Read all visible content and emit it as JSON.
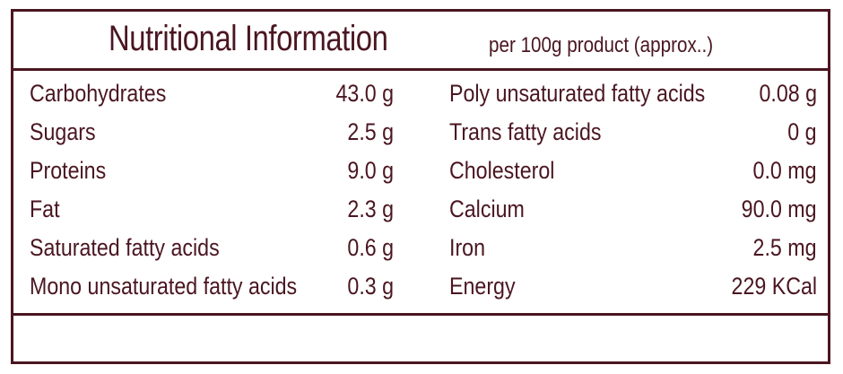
{
  "header": {
    "title": "Nutritional Information",
    "subtitle": "per 100g product (approx..)"
  },
  "rows": [
    {
      "left_name": "Carbohydrates",
      "left_value": "43.0 g",
      "right_name": "Poly unsaturated fatty acids",
      "right_value": "0.08 g"
    },
    {
      "left_name": "Sugars",
      "left_value": "2.5 g",
      "right_name": "Trans fatty acids",
      "right_value": "0 g"
    },
    {
      "left_name": "Proteins",
      "left_value": "9.0 g",
      "right_name": "Cholesterol",
      "right_value": "0.0 mg"
    },
    {
      "left_name": "Fat",
      "left_value": "2.3 g",
      "right_name": "Calcium",
      "right_value": "90.0 mg"
    },
    {
      "left_name": "Saturated fatty acids",
      "left_value": "0.6 g",
      "right_name": "Iron",
      "right_value": "2.5 mg"
    },
    {
      "left_name": "Mono unsaturated fatty acids",
      "left_value": "0.3 g",
      "right_name": "Energy",
      "right_value": "229 KCal"
    }
  ],
  "colors": {
    "ink": "#4a1620",
    "background": "#ffffff"
  }
}
